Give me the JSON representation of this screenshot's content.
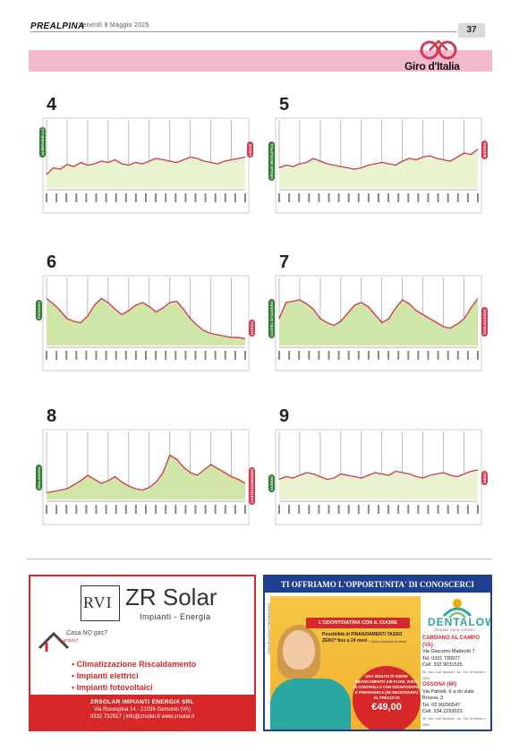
{
  "header": {
    "masthead": "PREALPINA",
    "dateline": "Venerdì 9 Maggio 2025",
    "page_number": "37",
    "section_logo_text": "Giro d'Italia"
  },
  "stages": [
    {
      "number": "4",
      "start": "ALBEROBELLO",
      "end": "LECCE",
      "profile": [
        20,
        30,
        28,
        35,
        32,
        38,
        34,
        36,
        40,
        38,
        42,
        36,
        34,
        38,
        36,
        40,
        44,
        42,
        40,
        38,
        42,
        46,
        44,
        40,
        38,
        36,
        40,
        42,
        44,
        46
      ],
      "fill": "#e9f3d0"
    },
    {
      "number": "5",
      "start": "CEGLIE MESSAPICA",
      "end": "MATERA",
      "profile": [
        30,
        34,
        32,
        36,
        38,
        44,
        40,
        36,
        34,
        32,
        30,
        28,
        30,
        34,
        36,
        38,
        36,
        34,
        40,
        44,
        42,
        46,
        48,
        44,
        42,
        40,
        46,
        52,
        50,
        58
      ],
      "fill": "#e9f3d0"
    },
    {
      "number": "6",
      "start": "POTENZA",
      "end": "NAPOLI",
      "profile": [
        70,
        62,
        52,
        40,
        36,
        34,
        44,
        60,
        70,
        64,
        54,
        46,
        52,
        60,
        64,
        58,
        50,
        56,
        64,
        66,
        54,
        40,
        30,
        22,
        18,
        16,
        14,
        12,
        12,
        10
      ],
      "fill": "#cfe6a8"
    },
    {
      "number": "7",
      "start": "CASTEL DI SANGRO",
      "end": "TAGLIACOZZO",
      "profile": [
        40,
        64,
        66,
        68,
        62,
        54,
        40,
        34,
        30,
        36,
        48,
        60,
        64,
        58,
        46,
        34,
        40,
        56,
        68,
        62,
        52,
        46,
        40,
        34,
        28,
        26,
        32,
        40,
        56,
        70
      ],
      "fill": "#cfe6a8"
    },
    {
      "number": "8",
      "start": "GIULIANOVA",
      "end": "CASTELRAIMONDO",
      "profile": [
        10,
        12,
        14,
        16,
        22,
        28,
        36,
        30,
        24,
        28,
        34,
        26,
        20,
        16,
        14,
        18,
        26,
        40,
        66,
        60,
        48,
        40,
        36,
        44,
        52,
        46,
        40,
        34,
        30,
        24
      ],
      "fill": "#cfe6a8"
    },
    {
      "number": "9",
      "start": "GUBBIO",
      "end": "SIENA",
      "profile": [
        30,
        34,
        32,
        36,
        40,
        38,
        34,
        30,
        32,
        38,
        36,
        34,
        32,
        36,
        40,
        38,
        36,
        42,
        40,
        38,
        34,
        32,
        36,
        38,
        40,
        36,
        34,
        38,
        42,
        44
      ],
      "fill": "#e9f3d0"
    }
  ],
  "ad_zr": {
    "logo_mark": "RVI",
    "brand": "ZR Solar",
    "subtitle": "Impianti - Energia",
    "tag1": "Casa NO gas?",
    "tag2": "Si grazie!",
    "services": [
      "Climatizzazione Riscaldamento",
      "Impianti elettrici",
      "Impianti fotovoltaici"
    ],
    "company": "ZRSOLAR IMPIANTI ENERGIA SRL",
    "address": "Via Rosespina 14 - 21036 Gemonio (VA)",
    "contacts": "0332 732917  |  info@zrsolar.it  www.zrsolar.it"
  },
  "ad_dental": {
    "headline": "TI OFFRIAMO L'OPPORTUNITA' DI CONOSCERCI",
    "ribbon": "L'ODONTOIATRIA CON IL CUORE",
    "financing": "Possibilità di FINANZIAMENTI TASSO ZERO* fino a 24 mesi",
    "financing_note": "* Salvo requisiti richiesti",
    "promo_lines": "UNA SEDUTA DI IGIENE SBIANCAMENTO AIR FLOW, VISITA DI CONTROLLO CON ODONTOIATRA E PANORAMICA (SE NECESSARIA) AL PREZZO DI",
    "promo_price": "€49,00",
    "brand": "DENTALOW",
    "brand_tag": "dental care center",
    "vertical_note": "CONVENZIONI / PROMOZIONI",
    "locations": [
      {
        "city": "CARDANO AL CAMPO (VA)",
        "lines": [
          "Via Giacomo Matteotti 7",
          "Tel. 0331 730077",
          "Cell. 392.9031525"
        ],
        "small": "Dir. San. Dott. Bonfanti - Isc. Ord. di Varese n. 3803"
      },
      {
        "city": "OSSONA (MI)",
        "lines": [
          "Via Patrioti, 6 a do viale Brossa, 3",
          "Tel. 02 90296547",
          "Cell. 334.2293023"
        ],
        "small": "Dir. San. Dott. Bonfanti - Isc. Ord. di Varese n. 3803"
      }
    ]
  },
  "colors": {
    "banner_pink": "#f3b9cf",
    "profile_pink": "#d23c52",
    "stage_green": "#2e7d32",
    "ad_red": "#d62828",
    "ad_blue": "#1f3f8f",
    "teal": "#2aa7a1"
  }
}
